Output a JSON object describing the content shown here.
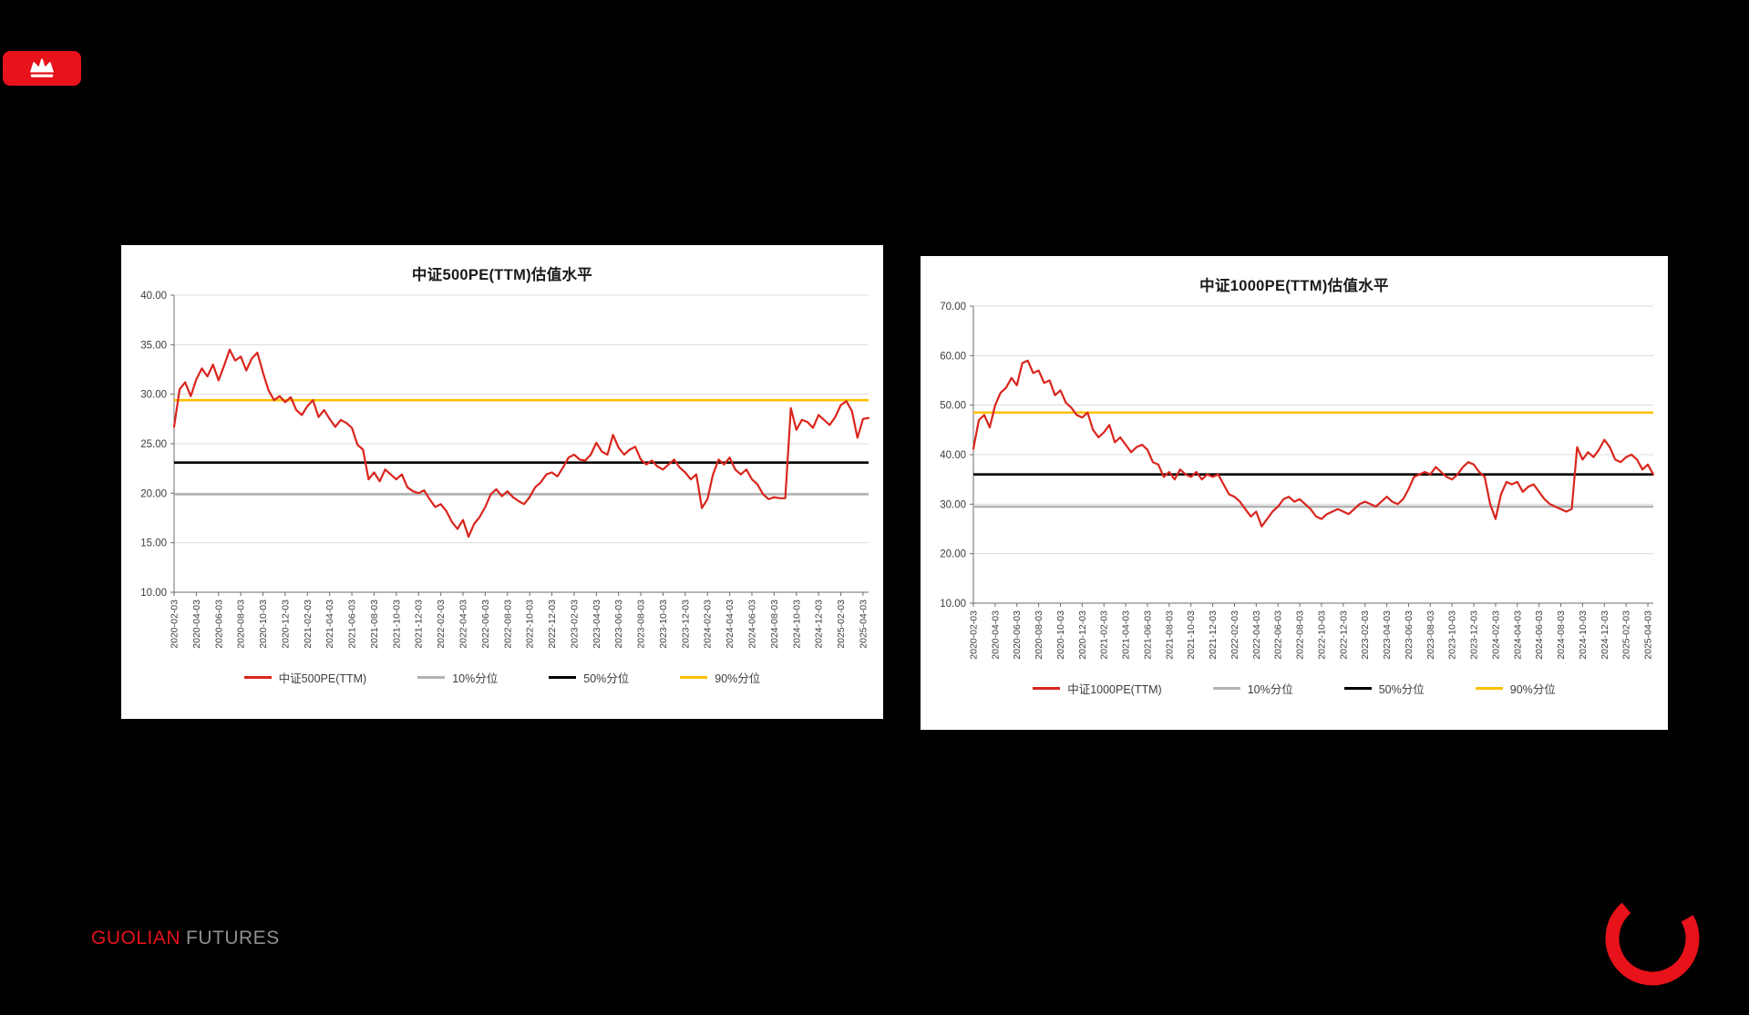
{
  "brand": {
    "name_primary": "GUOLIAN",
    "name_secondary": "FUTURES",
    "accent_red": "#e8121a",
    "secondary_gray": "#8f8f8f",
    "crown_icon": "crown-icon",
    "arc_icon": "red-arc-swoosh-icon"
  },
  "chart_data": [
    {
      "type": "line",
      "title": "中证500PE(TTM)估值水平",
      "ylim": [
        10,
        40
      ],
      "ytick_step": 5,
      "grid": true,
      "legend_position": "bottom",
      "points_per_month": 2,
      "x_tick_labels": [
        "2020-02-03",
        "2020-04-03",
        "2020-06-03",
        "2020-08-03",
        "2020-10-03",
        "2020-12-03",
        "2021-02-03",
        "2021-04-03",
        "2021-06-03",
        "2021-08-03",
        "2021-10-03",
        "2021-12-03",
        "2022-02-03",
        "2022-04-03",
        "2022-06-03",
        "2022-08-03",
        "2022-10-03",
        "2022-12-03",
        "2023-02-03",
        "2023-04-03",
        "2023-06-03",
        "2023-08-03",
        "2023-10-03",
        "2023-12-03",
        "2024-02-03",
        "2024-04-03",
        "2024-06-03",
        "2024-08-03",
        "2024-10-03",
        "2024-12-03",
        "2025-02-03",
        "2025-04-03"
      ],
      "series": [
        {
          "name": "中证500PE(TTM)",
          "color": "#d9251d",
          "values": [
            26.7,
            30.5,
            31.2,
            29.8,
            31.5,
            32.6,
            31.8,
            33.0,
            31.4,
            32.9,
            34.5,
            33.4,
            33.8,
            32.4,
            33.6,
            34.2,
            32.2,
            30.4,
            29.4,
            29.8,
            29.2,
            29.7,
            28.4,
            27.9,
            28.8,
            29.4,
            27.7,
            28.4,
            27.5,
            26.7,
            27.4,
            27.1,
            26.6,
            24.9,
            24.4,
            21.4,
            22.1,
            21.2,
            22.4,
            21.9,
            21.4,
            21.9,
            20.6,
            20.2,
            20.0,
            20.3,
            19.4,
            18.6,
            18.9,
            18.2,
            17.1,
            16.4,
            17.3,
            15.6,
            16.9,
            17.6,
            18.6,
            19.9,
            20.4,
            19.7,
            20.2,
            19.6,
            19.2,
            18.9,
            19.6,
            20.6,
            21.1,
            21.9,
            22.1,
            21.7,
            22.6,
            23.6,
            23.9,
            23.4,
            23.3,
            23.9,
            25.1,
            24.2,
            23.9,
            25.9,
            24.6,
            23.9,
            24.4,
            24.7,
            23.4,
            22.9,
            23.3,
            22.7,
            22.4,
            22.9,
            23.4,
            22.6,
            22.1,
            21.4,
            21.9,
            18.5,
            19.4,
            21.9,
            23.4,
            22.9,
            23.6,
            22.4,
            21.9,
            22.4,
            21.4,
            20.9,
            19.9,
            19.4,
            19.6,
            19.5,
            19.5,
            28.6,
            26.4,
            27.4,
            27.2,
            26.6,
            27.9,
            27.4,
            26.9,
            27.7,
            28.9,
            29.3,
            28.3,
            25.6,
            27.5,
            27.6
          ]
        }
      ],
      "ref_lines": [
        {
          "name": "10%分位",
          "value": 19.9,
          "color": "#b3b3b3"
        },
        {
          "name": "50%分位",
          "value": 23.1,
          "color": "#000000"
        },
        {
          "name": "90%分位",
          "value": 29.4,
          "color": "#ffc000"
        }
      ]
    },
    {
      "type": "line",
      "title": "中证1000PE(TTM)估值水平",
      "ylim": [
        10,
        70
      ],
      "ytick_step": 10,
      "grid": true,
      "legend_position": "bottom",
      "points_per_month": 2,
      "x_tick_labels": [
        "2020-02-03",
        "2020-04-03",
        "2020-06-03",
        "2020-08-03",
        "2020-10-03",
        "2020-12-03",
        "2021-02-03",
        "2021-04-03",
        "2021-06-03",
        "2021-08-03",
        "2021-10-03",
        "2021-12-03",
        "2022-02-03",
        "2022-04-03",
        "2022-06-03",
        "2022-08-03",
        "2022-10-03",
        "2022-12-03",
        "2023-02-03",
        "2023-04-03",
        "2023-06-03",
        "2023-08-03",
        "2023-10-03",
        "2023-12-03",
        "2024-02-03",
        "2024-04-03",
        "2024-06-03",
        "2024-08-03",
        "2024-10-03",
        "2024-12-03",
        "2025-02-03",
        "2025-04-03"
      ],
      "series": [
        {
          "name": "中证1000PE(TTM)",
          "color": "#d9251d",
          "values": [
            41.2,
            47.0,
            48.0,
            45.5,
            50.0,
            52.5,
            53.5,
            55.5,
            54.0,
            58.5,
            59.0,
            56.5,
            57.0,
            54.5,
            55.0,
            52.0,
            53.0,
            50.5,
            49.5,
            48.0,
            47.5,
            48.5,
            45.0,
            43.5,
            44.5,
            46.0,
            42.5,
            43.5,
            42.0,
            40.5,
            41.5,
            42.0,
            41.0,
            38.5,
            38.0,
            35.5,
            36.5,
            35.0,
            37.0,
            36.0,
            35.5,
            36.5,
            35.0,
            36.0,
            35.5,
            36.0,
            34.0,
            32.0,
            31.5,
            30.5,
            29.0,
            27.5,
            28.5,
            25.5,
            27.0,
            28.5,
            29.5,
            31.0,
            31.5,
            30.5,
            31.0,
            30.0,
            29.0,
            27.5,
            27.0,
            28.0,
            28.5,
            29.0,
            28.5,
            28.0,
            29.0,
            30.0,
            30.5,
            30.0,
            29.5,
            30.5,
            31.5,
            30.5,
            30.0,
            31.0,
            33.0,
            35.5,
            36.0,
            36.5,
            36.0,
            37.5,
            36.5,
            35.5,
            35.0,
            36.0,
            37.5,
            38.5,
            38.0,
            36.5,
            35.5,
            30.0,
            27.0,
            32.0,
            34.5,
            34.0,
            34.5,
            32.5,
            33.5,
            34.0,
            32.5,
            31.0,
            30.0,
            29.5,
            29.0,
            28.5,
            29.0,
            41.5,
            39.0,
            40.5,
            39.5,
            41.0,
            43.0,
            41.5,
            39.0,
            38.5,
            39.5,
            40.0,
            39.0,
            37.0,
            38.0,
            36.0
          ]
        }
      ],
      "ref_lines": [
        {
          "name": "10%分位",
          "value": 29.5,
          "color": "#b3b3b3"
        },
        {
          "name": "50%分位",
          "value": 36.0,
          "color": "#000000"
        },
        {
          "name": "90%分位",
          "value": 48.5,
          "color": "#ffc000"
        }
      ]
    }
  ]
}
